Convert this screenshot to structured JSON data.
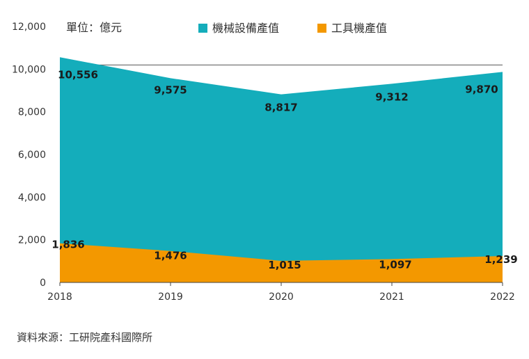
{
  "chart_data": {
    "type": "area",
    "unit_label": "單位：億元",
    "x": [
      "2018",
      "2019",
      "2020",
      "2021",
      "2022"
    ],
    "ylim": [
      0,
      12000
    ],
    "yticks": [
      "0",
      "2,000",
      "4,000",
      "6,000",
      "8,000",
      "10,000",
      "12,000"
    ],
    "series": [
      {
        "name": "機械設備產值",
        "color": "#14adbb",
        "values": [
          10556,
          9575,
          8817,
          9312,
          9870
        ],
        "labels": [
          "10,556",
          "9,575",
          "8,817",
          "9,312",
          "9,870"
        ]
      },
      {
        "name": "工具機產值",
        "color": "#f39800",
        "values": [
          1836,
          1476,
          1015,
          1097,
          1239
        ],
        "labels": [
          "1,836",
          "1,476",
          "1,015",
          "1,097",
          "1,239"
        ]
      }
    ],
    "legend_position": "top"
  },
  "source": "資料來源：工研院產科國際所"
}
